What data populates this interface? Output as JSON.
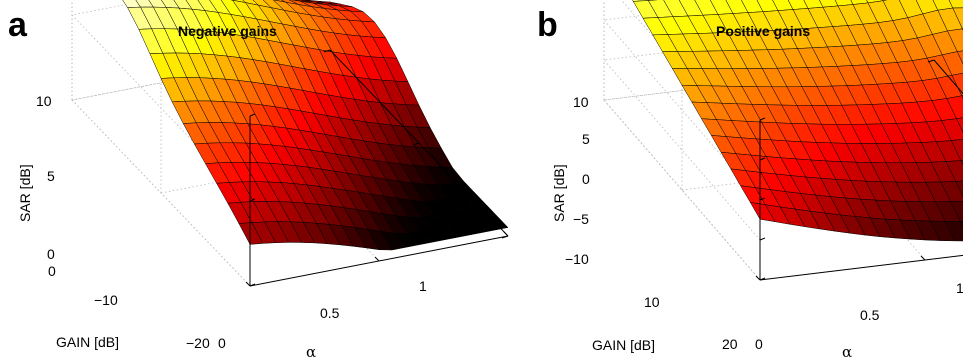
{
  "chart_data": [
    {
      "panel": "a",
      "type": "surface",
      "title": "Negative gains",
      "xlabel": "α",
      "ylabel": "GAIN [dB]",
      "zlabel": "SAR [dB]",
      "x_range": [
        0,
        1
      ],
      "y_range": [
        0,
        -20
      ],
      "z_range": [
        0,
        10
      ],
      "x_ticks": [
        "0",
        "0.5",
        "1"
      ],
      "y_ticks": [
        "0",
        "−10",
        "−20"
      ],
      "z_ticks": [
        "0",
        "5",
        "10"
      ],
      "colormap": "hot",
      "grid": true,
      "surface_description": "SAR peaks near 8–9 dB at low alpha and gains near 0 to −8 dB, descends toward ~1–3 dB at alpha near 1 and low gains",
      "corner_samples": [
        {
          "alpha": 0,
          "gain": 0,
          "sar": 6.5
        },
        {
          "alpha": 0,
          "gain": -20,
          "sar": 1.0
        },
        {
          "alpha": 1,
          "gain": 0,
          "sar": 3.5
        },
        {
          "alpha": 1,
          "gain": -20,
          "sar": 1.5
        }
      ]
    },
    {
      "panel": "b",
      "type": "surface",
      "title": "Positive gains",
      "xlabel": "α",
      "ylabel": "GAIN [dB]",
      "zlabel": "SAR [dB]",
      "x_range": [
        0,
        1
      ],
      "y_range": [
        0,
        20
      ],
      "z_range": [
        -10,
        10
      ],
      "x_ticks": [
        "0",
        "0.5",
        "1"
      ],
      "y_ticks": [
        "10",
        "20"
      ],
      "z_ticks": [
        "−10",
        "−5",
        "0",
        "5",
        "10"
      ],
      "colormap": "hot",
      "grid": true,
      "surface_description": "SAR highest (~9–10 dB) at low gain for most alpha, decreasing to around −5 to −9 dB at alpha near 1 and high gain",
      "corner_samples": [
        {
          "alpha": 0,
          "gain": 0,
          "sar": 8.5
        },
        {
          "alpha": 0,
          "gain": 20,
          "sar": -3.0
        },
        {
          "alpha": 1,
          "gain": 0,
          "sar": 10.0
        },
        {
          "alpha": 1,
          "gain": 20,
          "sar": -9.0
        }
      ]
    }
  ]
}
